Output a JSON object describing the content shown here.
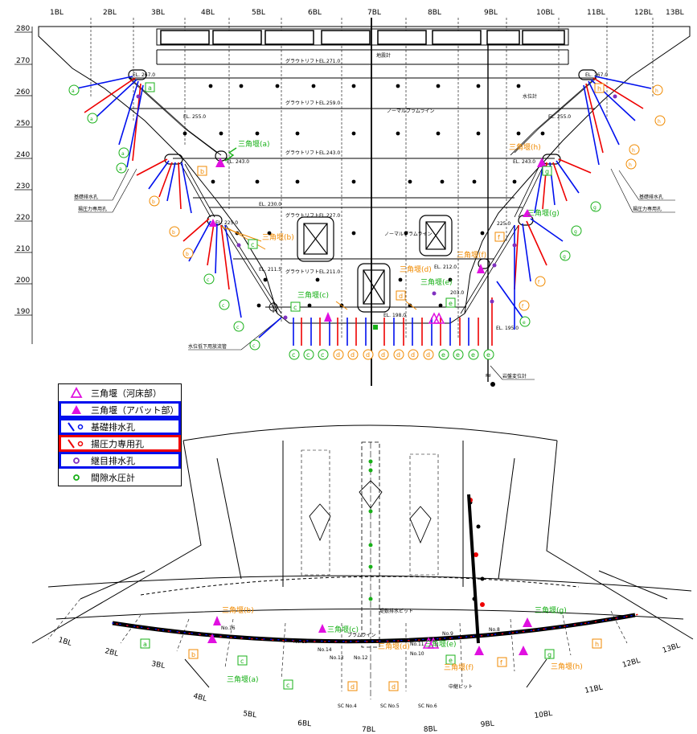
{
  "blocks": [
    "1BL",
    "2BL",
    "3BL",
    "4BL",
    "5BL",
    "6BL",
    "7BL",
    "8BL",
    "9BL",
    "10BL",
    "11BL",
    "12BL",
    "13BL"
  ],
  "elevations": [
    "280",
    "270",
    "260",
    "250",
    "240",
    "230",
    "220",
    "210",
    "200",
    "190"
  ],
  "section_notes": {
    "grout_271": "グラウトリフトEL.271.0",
    "grout_259": "グラウトリフトEL.259.0",
    "grout_243": "グラウトリフトEL.243.0",
    "grout_227": "グラウトリフトEL.227.0",
    "grout_211": "グラウトリフトEL.211.0",
    "normal_plume_1": "ノーマルプラムライン",
    "normal_plume_2": "ノーマルプラムライン",
    "seismometer": "地震計",
    "water_level": "水位計",
    "el_267_l": "EL. 267.0",
    "el_267_r": "EL. 267.0",
    "el_255_l": "EL. 255.0",
    "el_255_r": "EL. 255.0",
    "el_243_l": "EL. 243.0",
    "el_243_r": "EL. 243.0",
    "el_230": "EL. 230.0",
    "el_225_l": "EL. 225.0",
    "el_225_r": "225.0",
    "el_212": "EL. 212.0",
    "el_211": "EL. 211.5",
    "el_203": "203.0",
    "el_198": "EL. 198.0",
    "el_195": "EL. 195.0",
    "base_drain_l": "基礎排水孔",
    "base_drain_r": "基礎排水孔",
    "uplift_l": "揚圧力専用孔",
    "uplift_r": "揚圧力専用孔",
    "drain_pipe": "水位低下用放流管",
    "rock_meter": "岩盤変位計"
  },
  "weirs": {
    "a": "三角堰(a)",
    "b": "三角堰(b)",
    "c": "三角堰(c)",
    "d": "三角堰(d)",
    "e": "三角堰(e)",
    "f": "三角堰(f)",
    "g": "三角堰(g)",
    "h": "三角堰(h)"
  },
  "hole_labels_bottom": [
    "c",
    "c",
    "c",
    "d",
    "d",
    "d",
    "d",
    "d",
    "d",
    "d",
    "e",
    "e",
    "e",
    "e"
  ],
  "hole_labels_left": [
    "a",
    "a",
    "a",
    "a",
    "b",
    "b",
    "c",
    "c",
    "c",
    "c"
  ],
  "hole_labels_right": [
    "h",
    "h",
    "h",
    "h",
    "g",
    "g",
    "g",
    "f",
    "f",
    "e"
  ],
  "box_labels": {
    "a_top": "a",
    "b_mid": "b",
    "c_mid": "c",
    "c_low": "c",
    "d_low": "d",
    "e_low": "e",
    "f_low": "f",
    "g_mid": "g",
    "h_top": "h"
  },
  "legend": [
    {
      "symbol": "open-triangle",
      "label": "三角堰（河床部）"
    },
    {
      "symbol": "filled-triangle",
      "label": "三角堰（アバット部）"
    },
    {
      "symbol": "blue-line",
      "label": "基礎排水孔"
    },
    {
      "symbol": "red-line",
      "label": "揚圧力専用孔"
    },
    {
      "symbol": "purple-dot",
      "label": "継目排水孔"
    },
    {
      "symbol": "green-dot",
      "label": "間隙水圧計"
    }
  ],
  "plan": {
    "blocks": [
      "1BL",
      "2BL",
      "3BL",
      "4BL",
      "5BL",
      "6BL",
      "7BL",
      "8BL",
      "9BL",
      "10BL",
      "11BL",
      "12BL",
      "13BL"
    ],
    "weirs": {
      "a": "三角堰(a)",
      "b": "三角堰(b)",
      "c": "三角堰(c)",
      "d": "三角堰(d)",
      "e": "三角堰(e)",
      "f": "三角堰(f)",
      "g": "三角堰(g)",
      "h": "三角堰(h)"
    },
    "notes": {
      "sc4": "SC No.4",
      "sc5": "SC No.5",
      "sc6": "SC No.6",
      "plume": "プラムライン",
      "pit": "堤敷排水ピット",
      "mid_pit": "中継ピット",
      "no15": "No.15",
      "no16": "No.16",
      "no13": "No.13",
      "no14": "No.14",
      "no12": "No.12",
      "no11": "No.11",
      "no10": "No.10",
      "no9": "No.9",
      "no8": "No.8"
    },
    "boxes": {
      "a": "a",
      "b": "b",
      "c1": "c",
      "c2": "c",
      "d1": "d",
      "d2": "d",
      "e": "e",
      "f": "f",
      "g": "g",
      "h": "h"
    }
  },
  "colors": {
    "blue": "#0010ee",
    "red": "#ee0000",
    "green": "#18b018",
    "orange": "#f08a00",
    "magenta": "#e010e0"
  }
}
